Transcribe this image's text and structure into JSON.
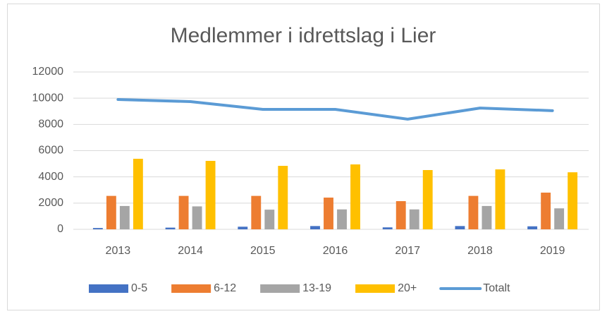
{
  "chart_data": {
    "type": "bar",
    "title": "Medlemmer i idrettslag i Lier",
    "categories": [
      "2013",
      "2014",
      "2015",
      "2016",
      "2017",
      "2018",
      "2019"
    ],
    "series": [
      {
        "name": "0-5",
        "color": "#4472c4",
        "type": "bar",
        "values": [
          100,
          130,
          200,
          250,
          150,
          250,
          230
        ]
      },
      {
        "name": "6-12",
        "color": "#ed7d31",
        "type": "bar",
        "values": [
          2550,
          2550,
          2550,
          2420,
          2150,
          2550,
          2800
        ]
      },
      {
        "name": "13-19",
        "color": "#a5a5a5",
        "type": "bar",
        "values": [
          1780,
          1750,
          1500,
          1520,
          1520,
          1780,
          1600
        ]
      },
      {
        "name": "20+",
        "color": "#ffc000",
        "type": "bar",
        "values": [
          5380,
          5220,
          4840,
          4950,
          4520,
          4570,
          4350
        ]
      },
      {
        "name": "Totalt",
        "color": "#5b9bd5",
        "type": "line",
        "values": [
          9900,
          9740,
          9150,
          9150,
          8400,
          9250,
          9050
        ]
      }
    ],
    "ylim": [
      0,
      12000
    ],
    "yticks": [
      0,
      2000,
      4000,
      6000,
      8000,
      10000,
      12000
    ],
    "grid": true,
    "legend": "bottom"
  }
}
